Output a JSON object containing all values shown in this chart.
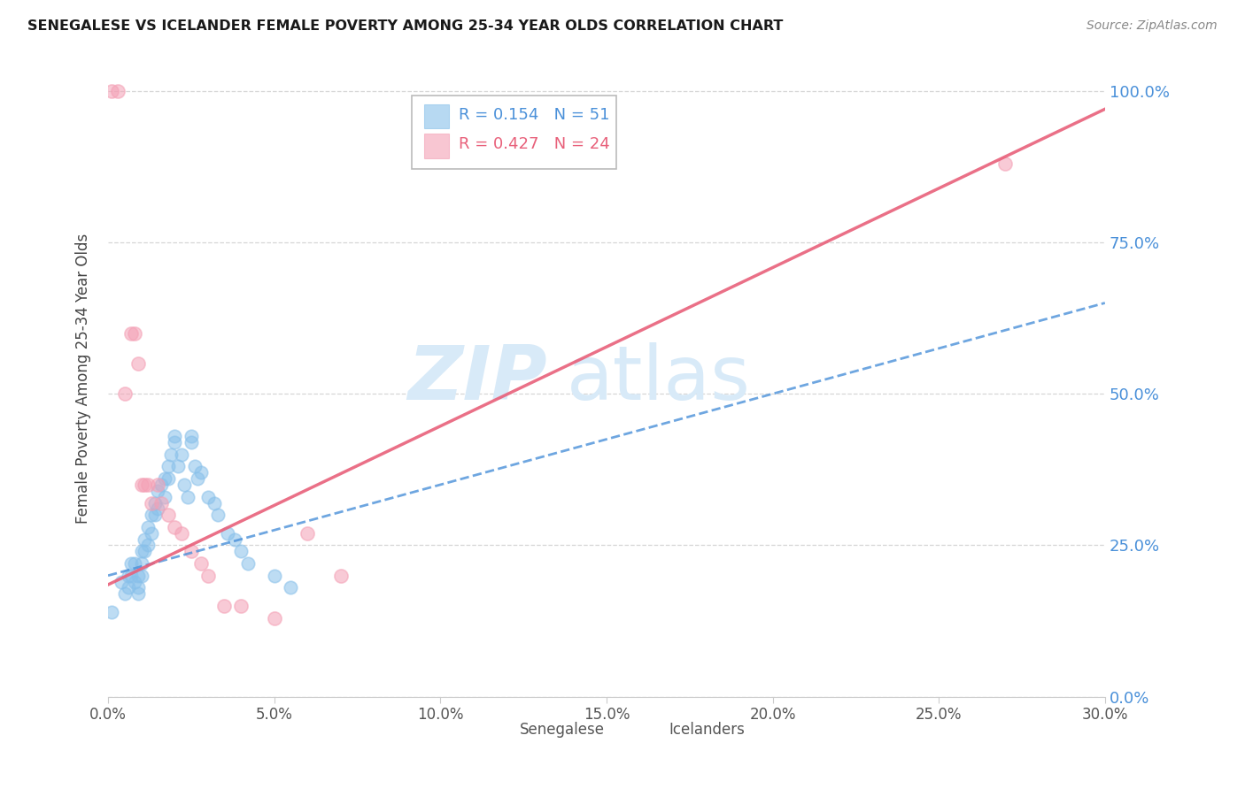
{
  "title": "SENEGALESE VS ICELANDER FEMALE POVERTY AMONG 25-34 YEAR OLDS CORRELATION CHART",
  "source": "Source: ZipAtlas.com",
  "ylabel": "Female Poverty Among 25-34 Year Olds",
  "xlim": [
    0.0,
    0.3
  ],
  "ylim": [
    0.0,
    1.05
  ],
  "xtick_vals": [
    0.0,
    0.05,
    0.1,
    0.15,
    0.2,
    0.25,
    0.3
  ],
  "xtick_labels": [
    "0.0%",
    "5.0%",
    "10.0%",
    "15.0%",
    "20.0%",
    "25.0%",
    "30.0%"
  ],
  "ytick_vals": [
    0.0,
    0.25,
    0.5,
    0.75,
    1.0
  ],
  "ytick_labels": [
    "0.0%",
    "25.0%",
    "50.0%",
    "75.0%",
    "100.0%"
  ],
  "blue_R": 0.154,
  "blue_N": 51,
  "pink_R": 0.427,
  "pink_N": 24,
  "blue_color": "#88C0EA",
  "pink_color": "#F4A0B5",
  "blue_line_color": "#4A90D9",
  "pink_line_color": "#E8607A",
  "grid_color": "#CCCCCC",
  "background_color": "#FFFFFF",
  "watermark_color": "#D8EAF8",
  "blue_scatter_x": [
    0.001,
    0.004,
    0.005,
    0.006,
    0.006,
    0.007,
    0.007,
    0.008,
    0.008,
    0.009,
    0.009,
    0.009,
    0.01,
    0.01,
    0.01,
    0.011,
    0.011,
    0.012,
    0.012,
    0.013,
    0.013,
    0.014,
    0.014,
    0.015,
    0.015,
    0.016,
    0.017,
    0.017,
    0.018,
    0.018,
    0.019,
    0.02,
    0.02,
    0.021,
    0.022,
    0.023,
    0.024,
    0.025,
    0.025,
    0.026,
    0.027,
    0.028,
    0.03,
    0.032,
    0.033,
    0.036,
    0.038,
    0.04,
    0.042,
    0.05,
    0.055
  ],
  "blue_scatter_y": [
    0.14,
    0.19,
    0.17,
    0.2,
    0.18,
    0.22,
    0.2,
    0.22,
    0.19,
    0.2,
    0.18,
    0.17,
    0.24,
    0.22,
    0.2,
    0.26,
    0.24,
    0.28,
    0.25,
    0.3,
    0.27,
    0.32,
    0.3,
    0.34,
    0.31,
    0.35,
    0.36,
    0.33,
    0.38,
    0.36,
    0.4,
    0.43,
    0.42,
    0.38,
    0.4,
    0.35,
    0.33,
    0.42,
    0.43,
    0.38,
    0.36,
    0.37,
    0.33,
    0.32,
    0.3,
    0.27,
    0.26,
    0.24,
    0.22,
    0.2,
    0.18
  ],
  "pink_scatter_x": [
    0.001,
    0.003,
    0.005,
    0.007,
    0.008,
    0.009,
    0.01,
    0.011,
    0.012,
    0.013,
    0.015,
    0.016,
    0.018,
    0.02,
    0.022,
    0.025,
    0.028,
    0.03,
    0.035,
    0.04,
    0.05,
    0.06,
    0.07,
    0.27
  ],
  "pink_scatter_y": [
    1.0,
    1.0,
    0.5,
    0.6,
    0.6,
    0.55,
    0.35,
    0.35,
    0.35,
    0.32,
    0.35,
    0.32,
    0.3,
    0.28,
    0.27,
    0.24,
    0.22,
    0.2,
    0.15,
    0.15,
    0.13,
    0.27,
    0.2,
    0.88
  ],
  "blue_trend_x": [
    0.0,
    0.3
  ],
  "blue_trend_y": [
    0.2,
    0.65
  ],
  "pink_trend_x": [
    0.0,
    0.3
  ],
  "pink_trend_y": [
    0.185,
    0.97
  ]
}
